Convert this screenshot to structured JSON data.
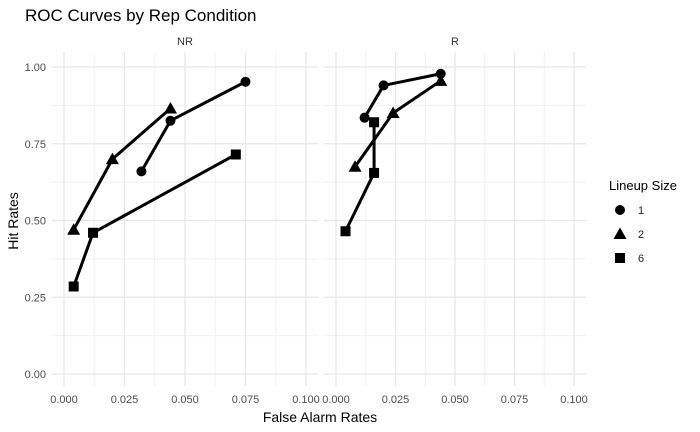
{
  "chart_data": {
    "type": "line",
    "title": "ROC Curves by Rep Condition",
    "xlabel": "False Alarm Rates",
    "ylabel": "Hit Rates",
    "xlim": [
      0,
      0.1
    ],
    "ylim": [
      0,
      1
    ],
    "x_ticks": [
      "0.000",
      "0.025",
      "0.050",
      "0.075",
      "0.100"
    ],
    "y_ticks": [
      "0.00",
      "0.25",
      "0.50",
      "0.75",
      "1.00"
    ],
    "legend": {
      "title": "Lineup Size",
      "position": "right",
      "entries": [
        {
          "label": "1",
          "shape": "circle"
        },
        {
          "label": "2",
          "shape": "triangle"
        },
        {
          "label": "6",
          "shape": "square"
        }
      ]
    },
    "panels": [
      {
        "name": "NR",
        "series": [
          {
            "name": "1",
            "shape": "circle",
            "points": [
              [
                0.032,
                0.66
              ],
              [
                0.044,
                0.825
              ],
              [
                0.075,
                0.952
              ]
            ]
          },
          {
            "name": "2",
            "shape": "triangle",
            "points": [
              [
                0.004,
                0.47
              ],
              [
                0.02,
                0.7
              ],
              [
                0.044,
                0.865
              ]
            ]
          },
          {
            "name": "6",
            "shape": "square",
            "points": [
              [
                0.004,
                0.285
              ],
              [
                0.012,
                0.46
              ],
              [
                0.071,
                0.715
              ]
            ]
          }
        ]
      },
      {
        "name": "R",
        "series": [
          {
            "name": "1",
            "shape": "circle",
            "points": [
              [
                0.012,
                0.835
              ],
              [
                0.02,
                0.94
              ],
              [
                0.044,
                0.978
              ]
            ]
          },
          {
            "name": "2",
            "shape": "triangle",
            "points": [
              [
                0.008,
                0.675
              ],
              [
                0.024,
                0.85
              ],
              [
                0.044,
                0.955
              ]
            ]
          },
          {
            "name": "6",
            "shape": "square",
            "points": [
              [
                0.004,
                0.465
              ],
              [
                0.016,
                0.655
              ],
              [
                0.016,
                0.82
              ]
            ]
          }
        ]
      }
    ]
  }
}
